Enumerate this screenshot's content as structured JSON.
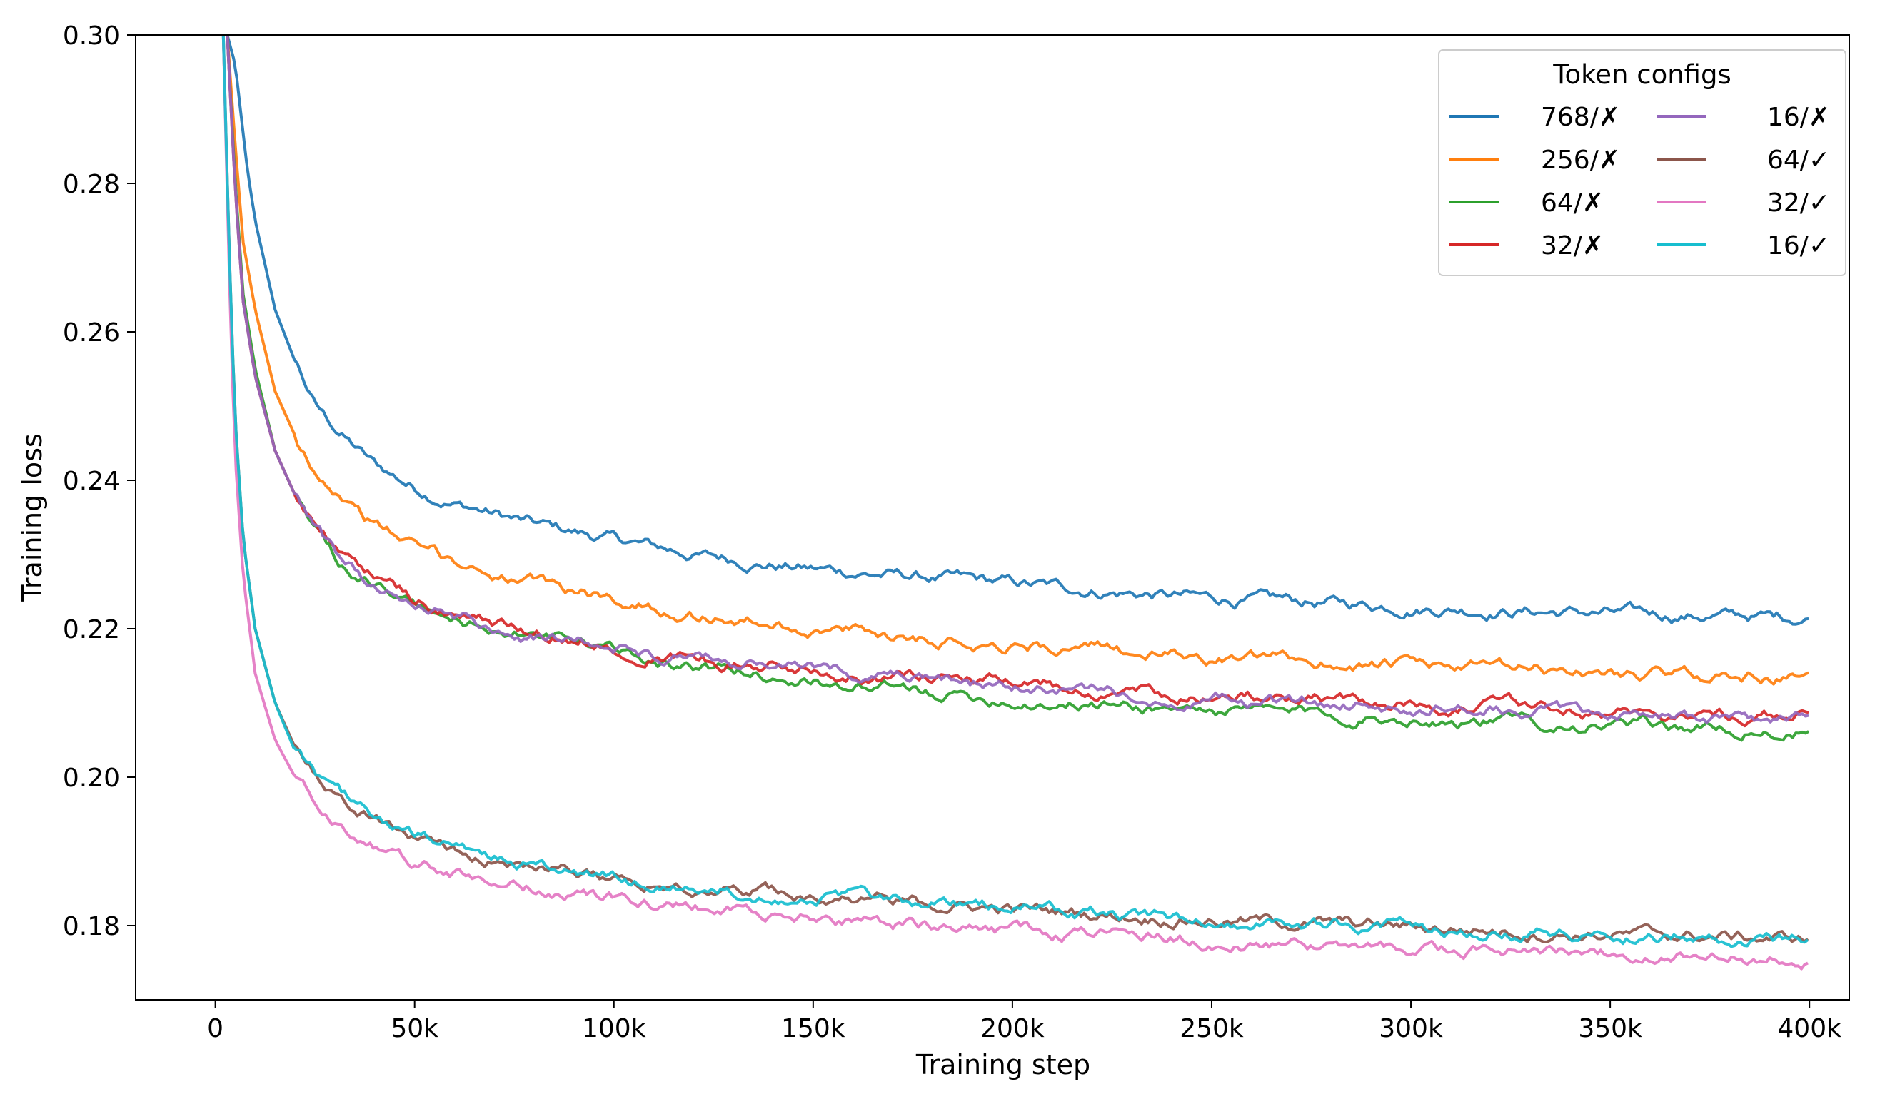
{
  "chart_data": {
    "type": "line",
    "xlabel": "Training step",
    "ylabel": "Training loss",
    "xlim": [
      -20000,
      410000
    ],
    "ylim": [
      0.17,
      0.3
    ],
    "x_ticks": [
      0,
      50000,
      100000,
      150000,
      200000,
      250000,
      300000,
      350000,
      400000
    ],
    "x_tick_labels": [
      "0",
      "50k",
      "100k",
      "150k",
      "200k",
      "250k",
      "300k",
      "350k",
      "400k"
    ],
    "y_ticks": [
      0.18,
      0.2,
      0.22,
      0.24,
      0.26,
      0.28,
      0.3
    ],
    "y_tick_labels": [
      "0.18",
      "0.20",
      "0.22",
      "0.24",
      "0.26",
      "0.28",
      "0.30"
    ],
    "grid": false,
    "legend": {
      "title": "Token configs",
      "placement": "top-right",
      "columns": 2
    },
    "series": [
      {
        "name": "768/✗",
        "color": "#1f77b4",
        "x": [
          3000,
          5000,
          8000,
          10000,
          15000,
          20000,
          25000,
          30000,
          40000,
          50000,
          60000,
          80000,
          100000,
          120000,
          150000,
          175000,
          200000,
          250000,
          300000,
          350000,
          400000
        ],
        "values": [
          0.3,
          0.296,
          0.282,
          0.275,
          0.263,
          0.256,
          0.25,
          0.247,
          0.242,
          0.239,
          0.237,
          0.234,
          0.232,
          0.23,
          0.228,
          0.227,
          0.226,
          0.224,
          0.223,
          0.222,
          0.2215
        ]
      },
      {
        "name": "256/✗",
        "color": "#ff7f0e",
        "x": [
          3000,
          5000,
          7000,
          10000,
          15000,
          20000,
          25000,
          30000,
          40000,
          50000,
          60000,
          80000,
          100000,
          120000,
          150000,
          175000,
          200000,
          250000,
          300000,
          350000,
          400000
        ],
        "values": [
          0.3,
          0.285,
          0.272,
          0.263,
          0.252,
          0.246,
          0.242,
          0.239,
          0.234,
          0.231,
          0.229,
          0.226,
          0.224,
          0.222,
          0.22,
          0.219,
          0.218,
          0.216,
          0.215,
          0.214,
          0.2135
        ]
      },
      {
        "name": "64/✗",
        "color": "#2ca02c",
        "x": [
          3000,
          5000,
          7000,
          10000,
          15000,
          20000,
          25000,
          30000,
          40000,
          50000,
          60000,
          80000,
          100000,
          120000,
          150000,
          175000,
          200000,
          250000,
          300000,
          350000,
          400000
        ],
        "values": [
          0.3,
          0.28,
          0.265,
          0.255,
          0.244,
          0.238,
          0.233,
          0.229,
          0.226,
          0.223,
          0.221,
          0.219,
          0.217,
          0.215,
          0.213,
          0.2115,
          0.2105,
          0.209,
          0.208,
          0.207,
          0.206
        ]
      },
      {
        "name": "32/✗",
        "color": "#d62728",
        "x": [
          3000,
          5000,
          7000,
          10000,
          15000,
          20000,
          25000,
          30000,
          40000,
          50000,
          60000,
          80000,
          100000,
          120000,
          150000,
          175000,
          200000,
          250000,
          300000,
          350000,
          400000
        ],
        "values": [
          0.3,
          0.279,
          0.264,
          0.254,
          0.244,
          0.238,
          0.234,
          0.231,
          0.227,
          0.224,
          0.222,
          0.2195,
          0.218,
          0.216,
          0.2145,
          0.2135,
          0.2125,
          0.211,
          0.21,
          0.209,
          0.2085
        ]
      },
      {
        "name": "16/✗",
        "color": "#9467bd",
        "x": [
          3000,
          5000,
          7000,
          10000,
          15000,
          20000,
          25000,
          30000,
          40000,
          50000,
          60000,
          80000,
          100000,
          120000,
          150000,
          175000,
          200000,
          250000,
          300000,
          350000,
          400000
        ],
        "values": [
          0.3,
          0.279,
          0.264,
          0.254,
          0.244,
          0.238,
          0.234,
          0.23,
          0.226,
          0.2235,
          0.2215,
          0.219,
          0.2175,
          0.216,
          0.2145,
          0.213,
          0.212,
          0.2105,
          0.2095,
          0.2085,
          0.2075
        ]
      },
      {
        "name": "64/✓",
        "color": "#8c564b",
        "x": [
          2000,
          3000,
          4000,
          5000,
          7000,
          10000,
          15000,
          20000,
          25000,
          30000,
          40000,
          50000,
          60000,
          80000,
          100000,
          120000,
          150000,
          175000,
          200000,
          250000,
          300000,
          350000,
          400000
        ],
        "values": [
          0.3,
          0.28,
          0.262,
          0.248,
          0.232,
          0.22,
          0.21,
          0.204,
          0.2005,
          0.198,
          0.1945,
          0.192,
          0.1905,
          0.188,
          0.1865,
          0.1855,
          0.1842,
          0.1832,
          0.1822,
          0.1808,
          0.1798,
          0.1788,
          0.1782
        ]
      },
      {
        "name": "32/✓",
        "color": "#e377c2",
        "x": [
          2000,
          3000,
          4000,
          5000,
          7000,
          10000,
          15000,
          20000,
          25000,
          30000,
          40000,
          50000,
          60000,
          80000,
          100000,
          120000,
          150000,
          175000,
          200000,
          250000,
          300000,
          350000,
          400000
        ],
        "values": [
          0.3,
          0.278,
          0.258,
          0.243,
          0.227,
          0.214,
          0.205,
          0.2,
          0.1965,
          0.194,
          0.1905,
          0.1885,
          0.187,
          0.185,
          0.1835,
          0.1825,
          0.181,
          0.1802,
          0.1792,
          0.1778,
          0.1768,
          0.1762,
          0.1755
        ]
      },
      {
        "name": "16/✓",
        "color": "#17becf",
        "x": [
          2000,
          3000,
          4000,
          5000,
          7000,
          10000,
          15000,
          20000,
          25000,
          30000,
          40000,
          50000,
          60000,
          80000,
          100000,
          120000,
          150000,
          175000,
          200000,
          250000,
          300000,
          350000,
          400000
        ],
        "values": [
          0.3,
          0.28,
          0.262,
          0.248,
          0.232,
          0.22,
          0.21,
          0.2035,
          0.2005,
          0.198,
          0.1945,
          0.192,
          0.1905,
          0.188,
          0.1862,
          0.1852,
          0.184,
          0.1832,
          0.1822,
          0.1808,
          0.1798,
          0.1788,
          0.1779
        ]
      }
    ]
  }
}
